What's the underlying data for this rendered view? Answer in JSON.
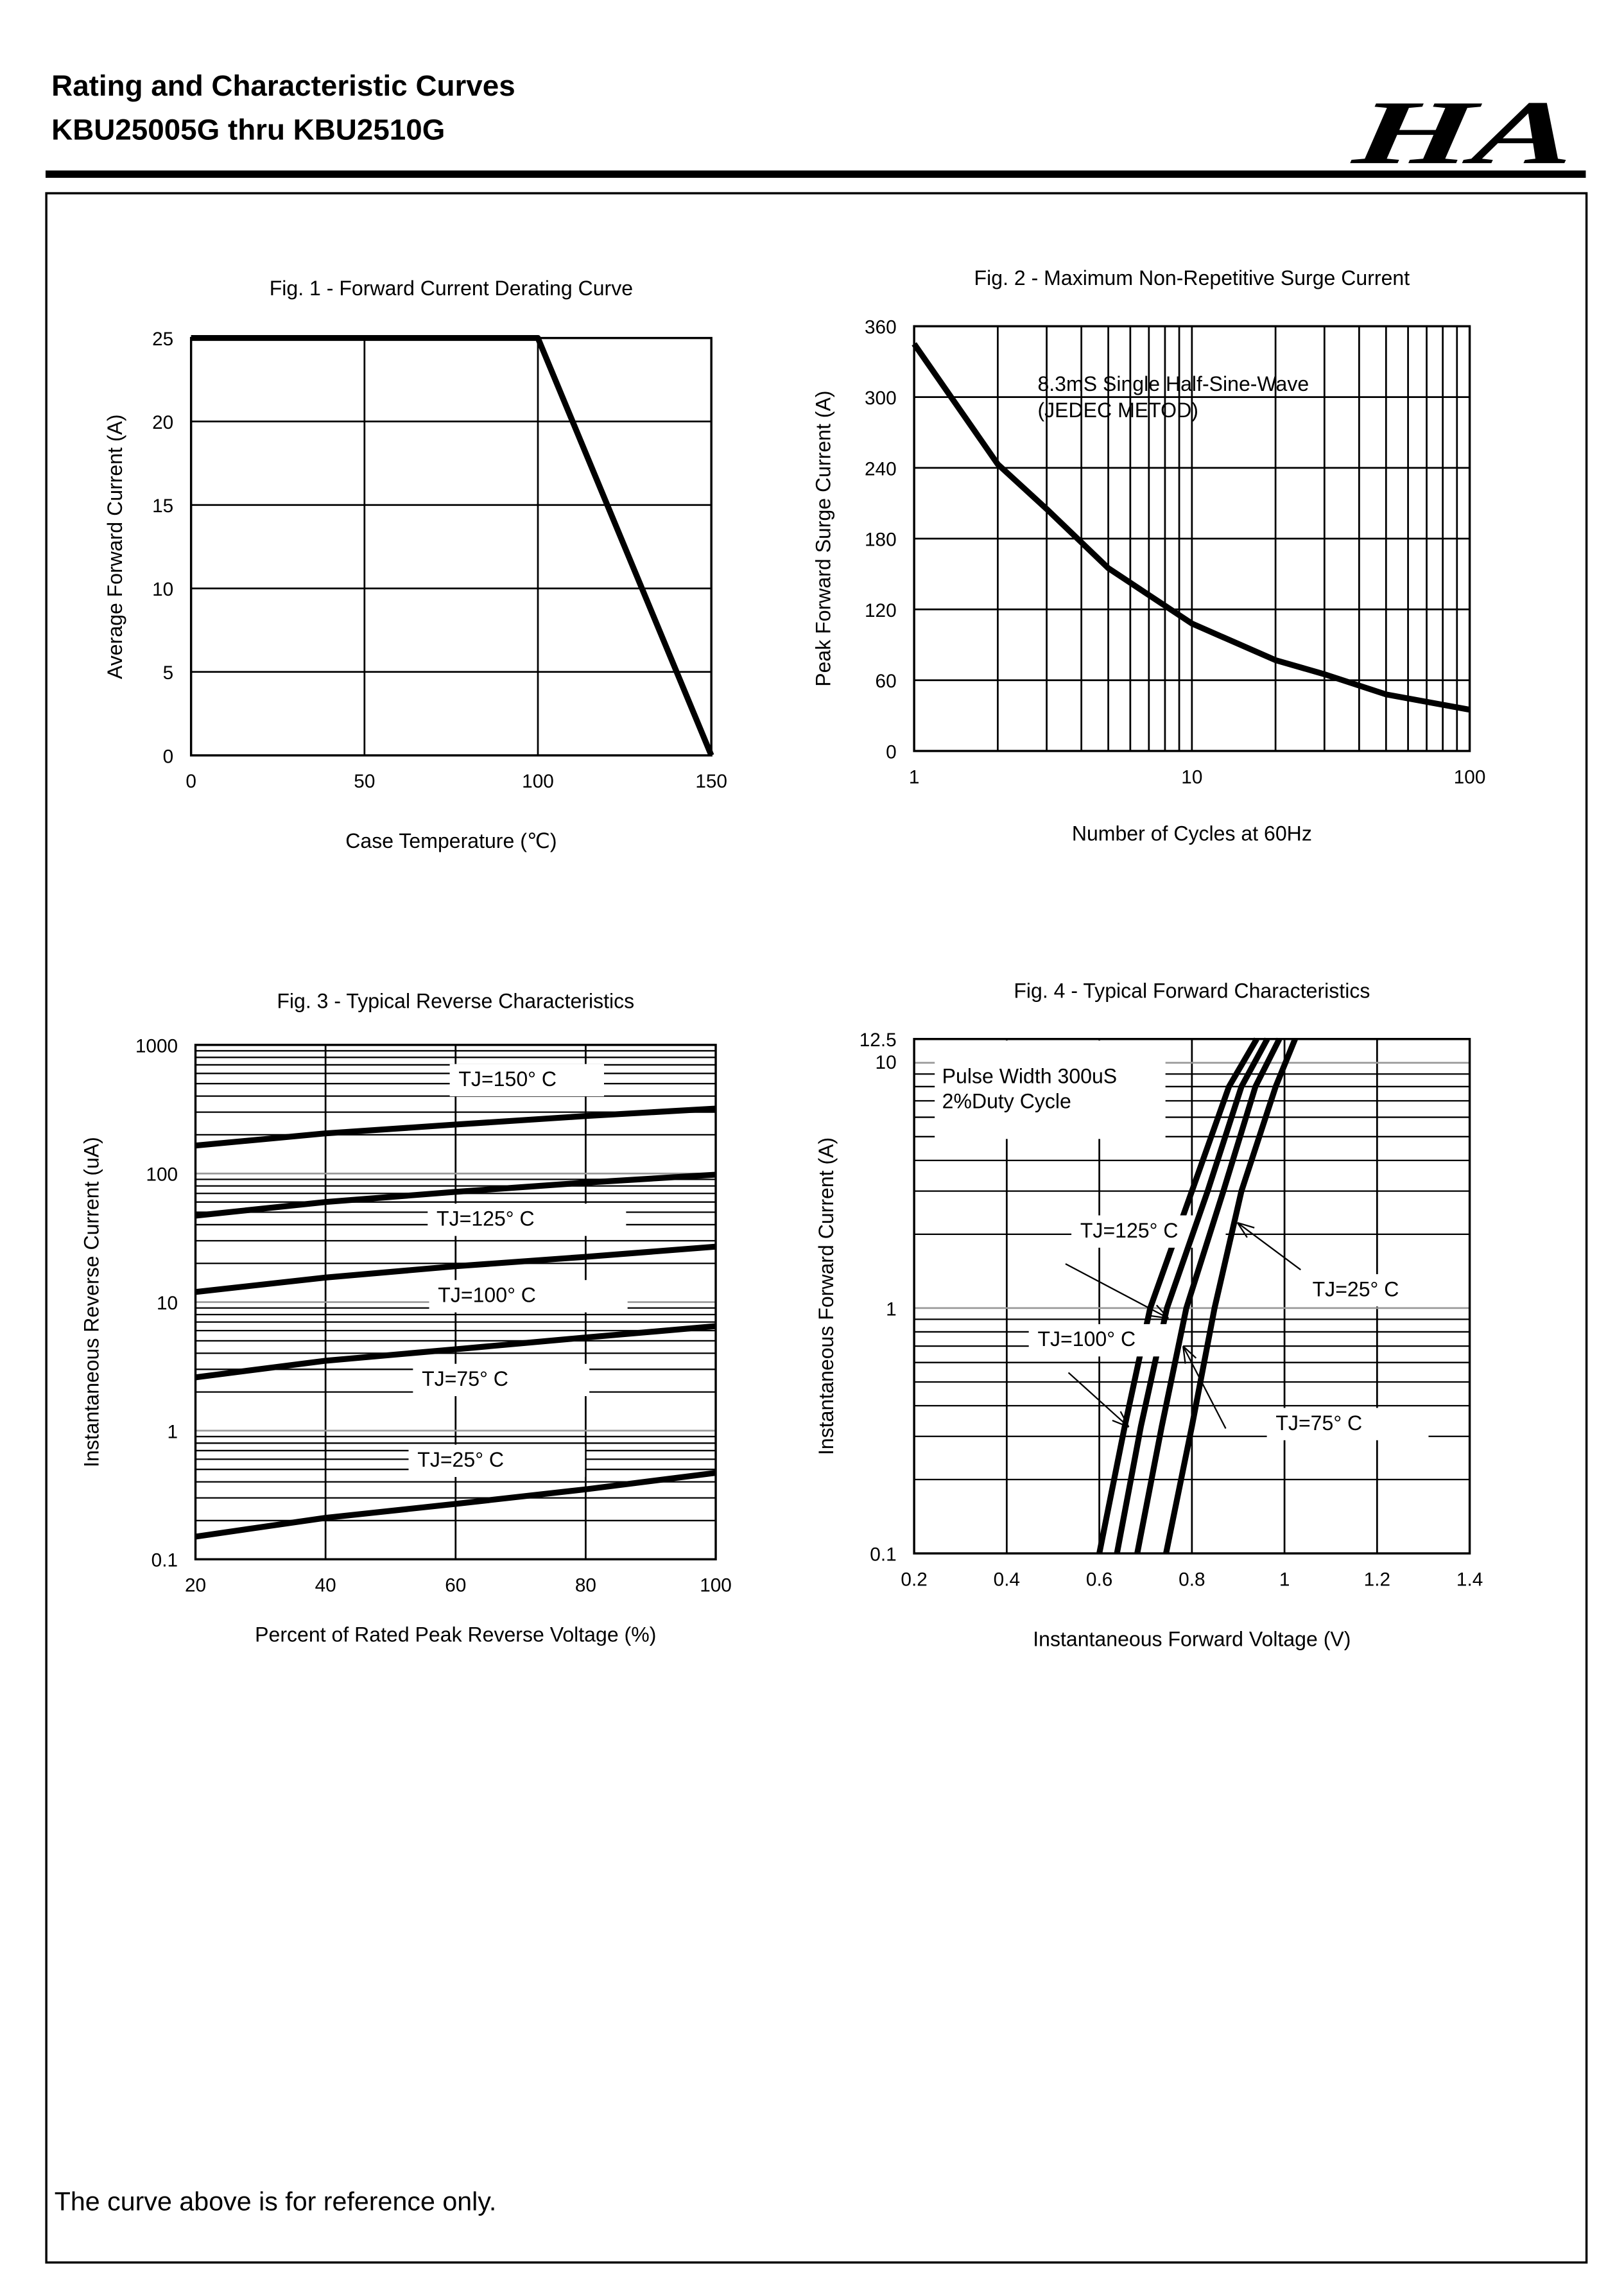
{
  "header": {
    "title": "Rating and Characteristic Curves",
    "subtitle": "KBU25005G thru KBU2510G",
    "logo_text": "HA"
  },
  "footer": {
    "note": "The curve above is for reference only."
  },
  "chart_data": [
    {
      "type": "line",
      "title": "Fig. 1 - Forward Current Derating Curve",
      "xlabel": "Case Temperature (℃)",
      "ylabel": "Average Forward Current (A)",
      "xscale": "linear",
      "yscale": "linear",
      "xlim": [
        0,
        150
      ],
      "ylim": [
        0,
        25
      ],
      "xticks": [
        "0",
        "50",
        "100",
        "150"
      ],
      "yticks": [
        "0",
        "5",
        "10",
        "15",
        "20",
        "25"
      ],
      "grid": true,
      "series": [
        {
          "x": [
            0,
            100,
            150
          ],
          "y": [
            25,
            25,
            0
          ]
        }
      ],
      "annotations": []
    },
    {
      "type": "line",
      "title": "Fig. 2 - Maximum Non-Repetitive Surge Current",
      "xlabel": "Number of Cycles at 60Hz",
      "ylabel": "Peak Forward Surge Current (A)",
      "xscale": "log",
      "yscale": "linear",
      "xlim": [
        1,
        100
      ],
      "ylim": [
        0,
        360
      ],
      "xticks": [
        "1",
        "10",
        "100"
      ],
      "yticks": [
        "0",
        "60",
        "120",
        "180",
        "240",
        "300",
        "360"
      ],
      "grid": true,
      "series": [
        {
          "x": [
            1,
            2,
            3,
            5,
            10,
            20,
            30,
            50,
            100
          ],
          "y": [
            345,
            243,
            205,
            155,
            108,
            77,
            65,
            48,
            35
          ]
        }
      ],
      "annotations": [
        {
          "lines": [
            "8.3mS Single Half-Sine-Wave",
            "(JEDEC METOD)"
          ]
        }
      ]
    },
    {
      "type": "line",
      "title": "Fig. 3 - Typical Reverse Characteristics",
      "xlabel": "Percent of Rated Peak Reverse Voltage (%)",
      "ylabel": "Instantaneous Reverse Current (uA)",
      "xscale": "linear",
      "yscale": "log",
      "xlim": [
        20,
        100
      ],
      "ylim": [
        0.1,
        1000
      ],
      "xticks": [
        "20",
        "40",
        "60",
        "80",
        "100"
      ],
      "yticks": [
        "0.1",
        "1",
        "10",
        "100",
        "1000"
      ],
      "grid": true,
      "series": [
        {
          "name": "TJ=150°  C",
          "x": [
            20,
            40,
            60,
            80,
            100
          ],
          "y": [
            165,
            205,
            240,
            280,
            320
          ]
        },
        {
          "name": "TJ=125°  C",
          "x": [
            20,
            40,
            60,
            80,
            100
          ],
          "y": [
            47,
            60,
            72,
            85,
            98
          ]
        },
        {
          "name": "TJ=100°  C",
          "x": [
            20,
            40,
            60,
            80,
            100
          ],
          "y": [
            12,
            15.5,
            19,
            22.5,
            27
          ]
        },
        {
          "name": "TJ=75°  C",
          "x": [
            20,
            40,
            60,
            80,
            100
          ],
          "y": [
            2.6,
            3.5,
            4.3,
            5.3,
            6.5
          ]
        },
        {
          "name": "TJ=25°  C",
          "x": [
            20,
            40,
            60,
            80,
            100
          ],
          "y": [
            0.15,
            0.21,
            0.27,
            0.35,
            0.47
          ]
        }
      ],
      "annotations": []
    },
    {
      "type": "line",
      "title": "Fig. 4 - Typical Forward Characteristics",
      "xlabel": "Instantaneous Forward Voltage (V)",
      "ylabel": "Instantaneous Forward Current (A)",
      "xscale": "linear",
      "yscale": "log",
      "xlim": [
        0.2,
        1.4
      ],
      "ylim": [
        0.1,
        12.5
      ],
      "xticks": [
        "0.2",
        "0.4",
        "0.6",
        "0.8",
        "1",
        "1.2",
        "1.4"
      ],
      "yticks": [
        "0.1",
        "1",
        "10",
        "12.5"
      ],
      "grid": true,
      "series": [
        {
          "name": "TJ=125°  C",
          "x": [
            0.6,
            0.655,
            0.71,
            0.8,
            0.88,
            0.94
          ],
          "y": [
            0.1,
            0.33,
            1,
            3,
            8,
            12.5
          ]
        },
        {
          "name": "TJ=100°  C",
          "x": [
            0.638,
            0.69,
            0.746,
            0.834,
            0.907,
            0.963
          ],
          "y": [
            0.1,
            0.33,
            1,
            3,
            8,
            12.5
          ]
        },
        {
          "name": "TJ=75°  C",
          "x": [
            0.682,
            0.735,
            0.788,
            0.868,
            0.937,
            0.989
          ],
          "y": [
            0.1,
            0.33,
            1,
            3,
            8,
            12.5
          ]
        },
        {
          "name": "TJ=25°  C",
          "x": [
            0.744,
            0.8,
            0.849,
            0.907,
            0.981,
            1.023
          ],
          "y": [
            0.1,
            0.33,
            1,
            3,
            8,
            12.5
          ]
        }
      ],
      "annotations": [
        {
          "lines": [
            "Pulse Width 300uS",
            "2%Duty Cycle"
          ]
        }
      ]
    }
  ]
}
